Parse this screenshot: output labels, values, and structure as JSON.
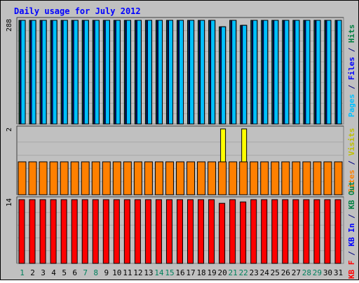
{
  "chart_data": {
    "type": "bar",
    "title": "Daily usage for July 2012",
    "categories": [
      "1",
      "2",
      "3",
      "4",
      "5",
      "6",
      "7",
      "8",
      "9",
      "10",
      "11",
      "12",
      "13",
      "14",
      "15",
      "16",
      "17",
      "18",
      "19",
      "20",
      "21",
      "22",
      "23",
      "24",
      "25",
      "26",
      "27",
      "28",
      "29",
      "30",
      "31"
    ],
    "weekend_days": [
      "1",
      "7",
      "8",
      "14",
      "15",
      "21",
      "22",
      "28",
      "29"
    ],
    "panels": [
      {
        "name": "hits-panel",
        "ymax_label": "288",
        "ymax": 288,
        "axis_label_parts": [
          {
            "text": "Pages",
            "color": "#00c0ff"
          },
          {
            "text": " / ",
            "color": "#000080"
          },
          {
            "text": "Files",
            "color": "#0000ff"
          },
          {
            "text": " / ",
            "color": "#000080"
          },
          {
            "text": "Hits",
            "color": "#008040"
          }
        ],
        "series": [
          {
            "name": "Hits",
            "color": "#00805c",
            "values": [
              288,
              288,
              288,
              288,
              288,
              288,
              288,
              288,
              288,
              288,
              288,
              288,
              288,
              288,
              288,
              288,
              288,
              288,
              288,
              270,
              288,
              274,
              288,
              288,
              288,
              288,
              288,
              288,
              288,
              288,
              288
            ]
          },
          {
            "name": "Files",
            "color": "#0000ff",
            "values": [
              288,
              288,
              288,
              288,
              288,
              288,
              288,
              288,
              288,
              288,
              288,
              288,
              288,
              288,
              288,
              288,
              288,
              288,
              288,
              270,
              288,
              274,
              288,
              288,
              288,
              288,
              288,
              288,
              288,
              288,
              288
            ]
          },
          {
            "name": "Pages",
            "color": "#00c0ff",
            "values": [
              288,
              288,
              288,
              288,
              288,
              288,
              288,
              288,
              288,
              288,
              288,
              288,
              288,
              288,
              288,
              288,
              288,
              288,
              288,
              270,
              288,
              274,
              288,
              288,
              288,
              288,
              288,
              288,
              288,
              288,
              288
            ]
          }
        ]
      },
      {
        "name": "visits-panel",
        "ymax_label": "2",
        "ymax": 2,
        "axis_label_parts": [
          {
            "text": "Sites",
            "color": "#ff8000"
          },
          {
            "text": " / ",
            "color": "#000080"
          },
          {
            "text": "Visits",
            "color": "#c0c000"
          }
        ],
        "series": [
          {
            "name": "Visits",
            "color": "#ffff00",
            "values": [
              1,
              1,
              1,
              1,
              1,
              1,
              1,
              1,
              1,
              1,
              1,
              1,
              1,
              1,
              1,
              1,
              1,
              1,
              1,
              2,
              1,
              2,
              1,
              1,
              1,
              1,
              1,
              1,
              1,
              1,
              1
            ]
          },
          {
            "name": "Sites",
            "color": "#ff8000",
            "values": [
              1,
              1,
              1,
              1,
              1,
              1,
              1,
              1,
              1,
              1,
              1,
              1,
              1,
              1,
              1,
              1,
              1,
              1,
              1,
              1,
              1,
              1,
              1,
              1,
              1,
              1,
              1,
              1,
              1,
              1,
              1
            ]
          }
        ]
      },
      {
        "name": "kbytes-panel",
        "ymax_label": "14",
        "ymax": 14,
        "axis_label_parts": [
          {
            "text": "KB F",
            "color": "#ff0000"
          },
          {
            "text": " / ",
            "color": "#000080"
          },
          {
            "text": "KB In",
            "color": "#0000ff"
          },
          {
            "text": " / ",
            "color": "#000080"
          },
          {
            "text": "KB Out",
            "color": "#008040"
          }
        ],
        "series": [
          {
            "name": "KB F",
            "color": "#ff0000",
            "values": [
              14,
              14,
              14,
              14,
              14,
              14,
              14,
              14,
              14,
              14,
              14,
              14,
              14,
              14,
              14,
              14,
              14,
              14,
              14,
              13.2,
              14,
              13.5,
              14,
              14,
              14,
              14,
              14,
              14,
              14,
              14,
              14
            ]
          }
        ]
      }
    ],
    "colors": {
      "background": "#c0c0c0",
      "title": "#0000ff",
      "weekday_label": "#000000",
      "weekend_label": "#00805c"
    }
  }
}
